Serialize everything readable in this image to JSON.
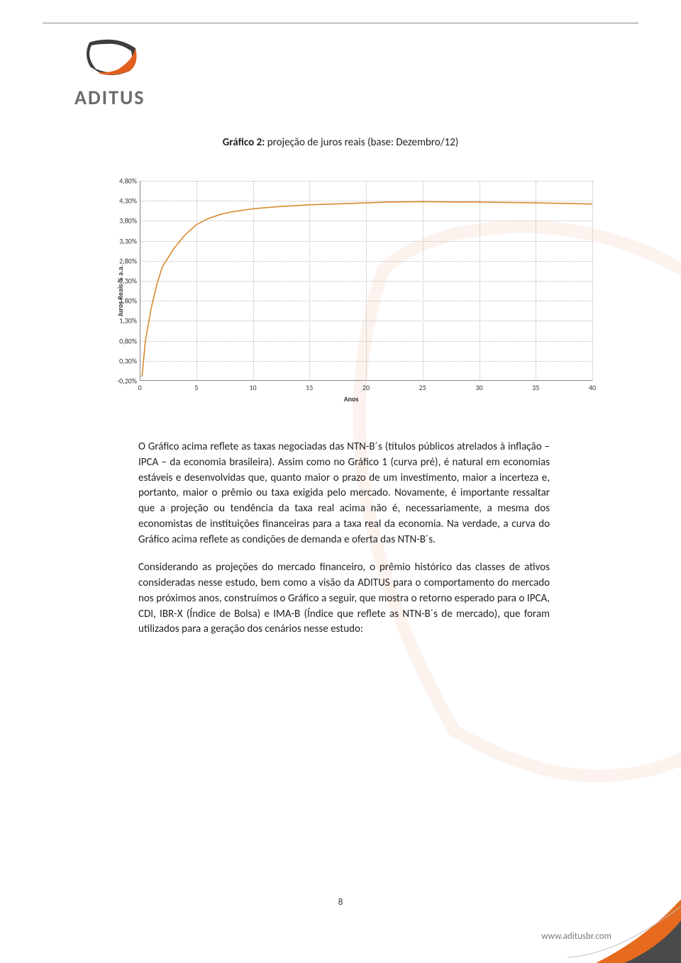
{
  "logo": {
    "text": "ADITUS"
  },
  "title": {
    "bold": "Gráfico 2:",
    "rest": " projeção de juros reais (base: Dezembro/12)"
  },
  "chart": {
    "type": "line",
    "y_label": "Juros Reais % a.a.",
    "x_label": "Anos",
    "y_ticks": [
      "4,80%",
      "4,30%",
      "3,80%",
      "3,30%",
      "2,80%",
      "2,30%",
      "1,80%",
      "1,30%",
      "0,80%",
      "0,30%",
      "-0,20%"
    ],
    "y_min": -0.2,
    "y_max": 4.8,
    "y_step": 0.5,
    "x_ticks": [
      "0",
      "5",
      "10",
      "15",
      "20",
      "25",
      "30",
      "35",
      "40"
    ],
    "x_min": 0,
    "x_max": 40,
    "x_step": 5,
    "line_color": "#d68a2e",
    "line_width": 1.6,
    "grid_color": "#bbbbbb",
    "grid_style": "dotted",
    "background_color": "#ffffff",
    "tick_fontsize": 10,
    "label_fontsize": 10,
    "data": {
      "x": [
        0.2,
        0.5,
        1,
        1.5,
        2,
        3,
        4,
        5,
        6,
        7,
        8,
        10,
        12,
        15,
        18,
        20,
        22,
        25,
        28,
        30,
        32,
        35,
        40
      ],
      "y": [
        -0.1,
        0.8,
        1.6,
        2.2,
        2.65,
        3.1,
        3.45,
        3.7,
        3.85,
        3.95,
        4.02,
        4.1,
        4.15,
        4.2,
        4.23,
        4.25,
        4.27,
        4.28,
        4.27,
        4.27,
        4.26,
        4.25,
        4.22
      ]
    }
  },
  "paragraphs": {
    "p1": "O Gráfico acima reflete as taxas negociadas das NTN-B´s (títulos públicos atrelados à inflação – IPCA – da economia brasileira). Assim como no Gráfico 1 (curva pré), é natural em economias estáveis e desenvolvidas que, quanto maior o prazo de um investimento, maior a incerteza e, portanto, maior o prêmio ou taxa exigida pelo mercado. Novamente, é importante ressaltar que a projeção ou tendência da taxa real acima não é, necessariamente, a mesma dos economistas de instituições financeiras para a taxa real da economia. Na verdade, a curva do Gráfico acima reflete as condições de demanda e oferta das NTN-B´s.",
    "p2": "Considerando as projeções do mercado financeiro, o prêmio histórico das classes de ativos consideradas nesse estudo, bem como a visão da ADITUS para o comportamento do mercado nos próximos anos, construímos o Gráfico a seguir, que mostra o retorno esperado para o IPCA, CDI, IBR-X (Índice de Bolsa) e IMA-B (Índice que reflete as NTN-B´s de mercado), que foram utilizados para a geração dos cenários nesse estudo:"
  },
  "page_number": "8",
  "footer_url": "www.aditusbr.com",
  "colors": {
    "logo_orange": "#e35f1e",
    "logo_dark": "#3d3d3d",
    "logo_text": "#6b6b6b",
    "corner_orange": "#e66b1f",
    "corner_dark": "#4a4a4a"
  }
}
